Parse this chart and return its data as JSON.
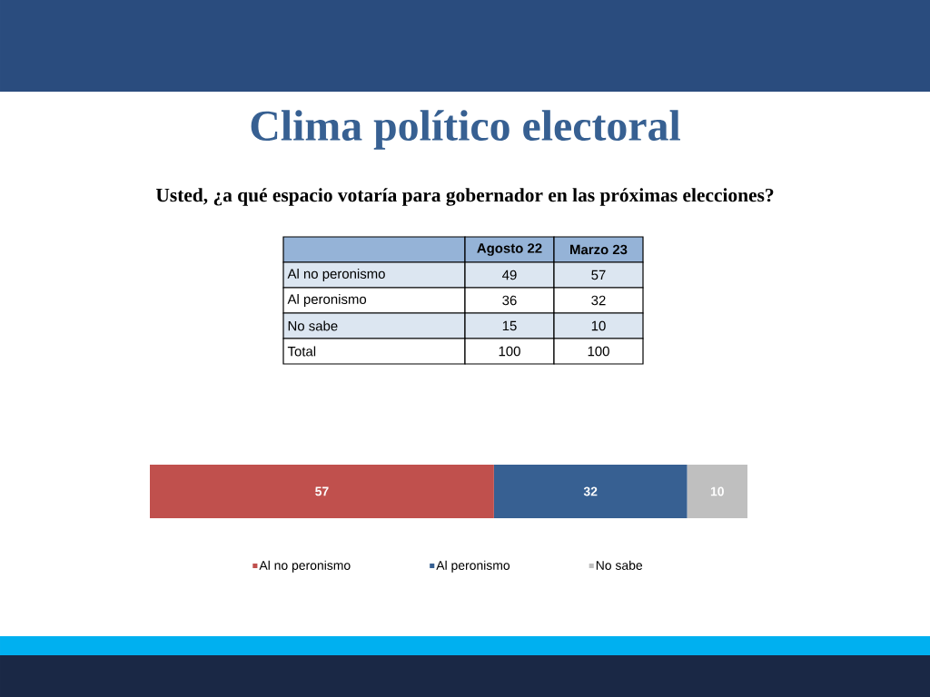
{
  "chart_data": [
    {
      "type": "heatmap",
      "title": "Clima político electoral",
      "subtitle": "Usted, ¿a qué espacio votaría para gobernador en las próximas elecciones?",
      "categories": [
        "Agosto 22",
        "Marzo 23"
      ],
      "y_categories": [
        "Al no peronismo",
        "Al peronismo",
        "No sabe",
        "Total"
      ],
      "data_labels": true,
      "cells": [
        [
          49,
          57
        ],
        [
          36,
          32
        ],
        [
          15,
          10
        ],
        [
          100,
          100
        ]
      ]
    },
    {
      "type": "bar",
      "orientation": "horizontal",
      "stacked": true,
      "categories": [
        null
      ],
      "data_labels": true,
      "legend": "bottom",
      "series": [
        {
          "name": "Al no peronismo",
          "color": "#c0504d",
          "values": [
            57
          ]
        },
        {
          "name": "Al peronismo",
          "color": "#376092",
          "values": [
            32
          ]
        },
        {
          "name": "No sabe",
          "color": "#bfbfbf",
          "values": [
            10
          ]
        }
      ]
    }
  ]
}
